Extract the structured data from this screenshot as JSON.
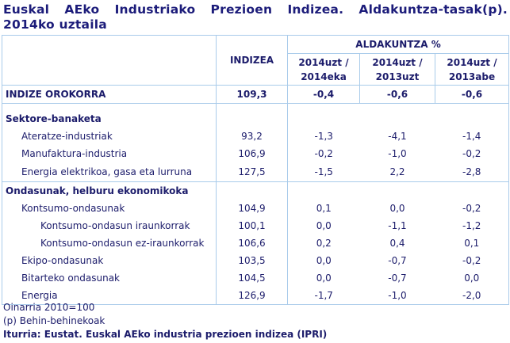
{
  "title": "Euskal AEko Industriako Prezioen Indizea. Aldakuntza-tasak(p). 2014ko uztaila",
  "header": {
    "indizea": "INDIZEA",
    "aldakuntza": "ALDAKUNTZA %",
    "cols": [
      [
        "2014uzt /",
        "2014eka"
      ],
      [
        "2014uzt /",
        "2013uzt"
      ],
      [
        "2014uzt /",
        "2013abe"
      ]
    ]
  },
  "total": {
    "label": "INDIZE OROKORRA",
    "values": [
      "109,3",
      "-0,4",
      "-0,6",
      "-0,6"
    ]
  },
  "sections": [
    {
      "title": "Sektore-banaketa",
      "rows": [
        {
          "label": "Ateratze-industriak",
          "level": 1,
          "values": [
            "93,2",
            "-1,3",
            "-4,1",
            "-1,4"
          ]
        },
        {
          "label": "Manufaktura-industria",
          "level": 1,
          "values": [
            "106,9",
            "-0,2",
            "-1,0",
            "-0,2"
          ]
        },
        {
          "label": "Energia elektrikoa, gasa eta lurruna",
          "level": 1,
          "values": [
            "127,5",
            "-1,5",
            "2,2",
            "-2,8"
          ]
        }
      ]
    },
    {
      "title": "Ondasunak, helburu ekonomikoka",
      "rows": [
        {
          "label": "Kontsumo-ondasunak",
          "level": 1,
          "values": [
            "104,9",
            "0,1",
            "0,0",
            "-0,2"
          ]
        },
        {
          "label": "Kontsumo-ondasun iraunkorrak",
          "level": 2,
          "values": [
            "100,1",
            "0,0",
            "-1,1",
            "-1,2"
          ]
        },
        {
          "label": "Kontsumo-ondasun ez-iraunkorrak",
          "level": 2,
          "values": [
            "106,6",
            "0,2",
            "0,4",
            "0,1"
          ]
        },
        {
          "label": "Ekipo-ondasunak",
          "level": 1,
          "values": [
            "103,5",
            "0,0",
            "-0,7",
            "-0,2"
          ]
        },
        {
          "label": "Bitarteko ondasunak",
          "level": 1,
          "values": [
            "104,5",
            "0,0",
            "-0,7",
            "0,0"
          ]
        },
        {
          "label": "Energia",
          "level": 1,
          "values": [
            "126,9",
            "-1,7",
            "-1,0",
            "-2,0"
          ]
        }
      ]
    }
  ],
  "footnotes": [
    "Oinarria 2010=100",
    "(p) Behin-behinekoak"
  ],
  "source": "Iturria: Eustat. Euskal AEko industria prezioen indizea (IPRI)"
}
